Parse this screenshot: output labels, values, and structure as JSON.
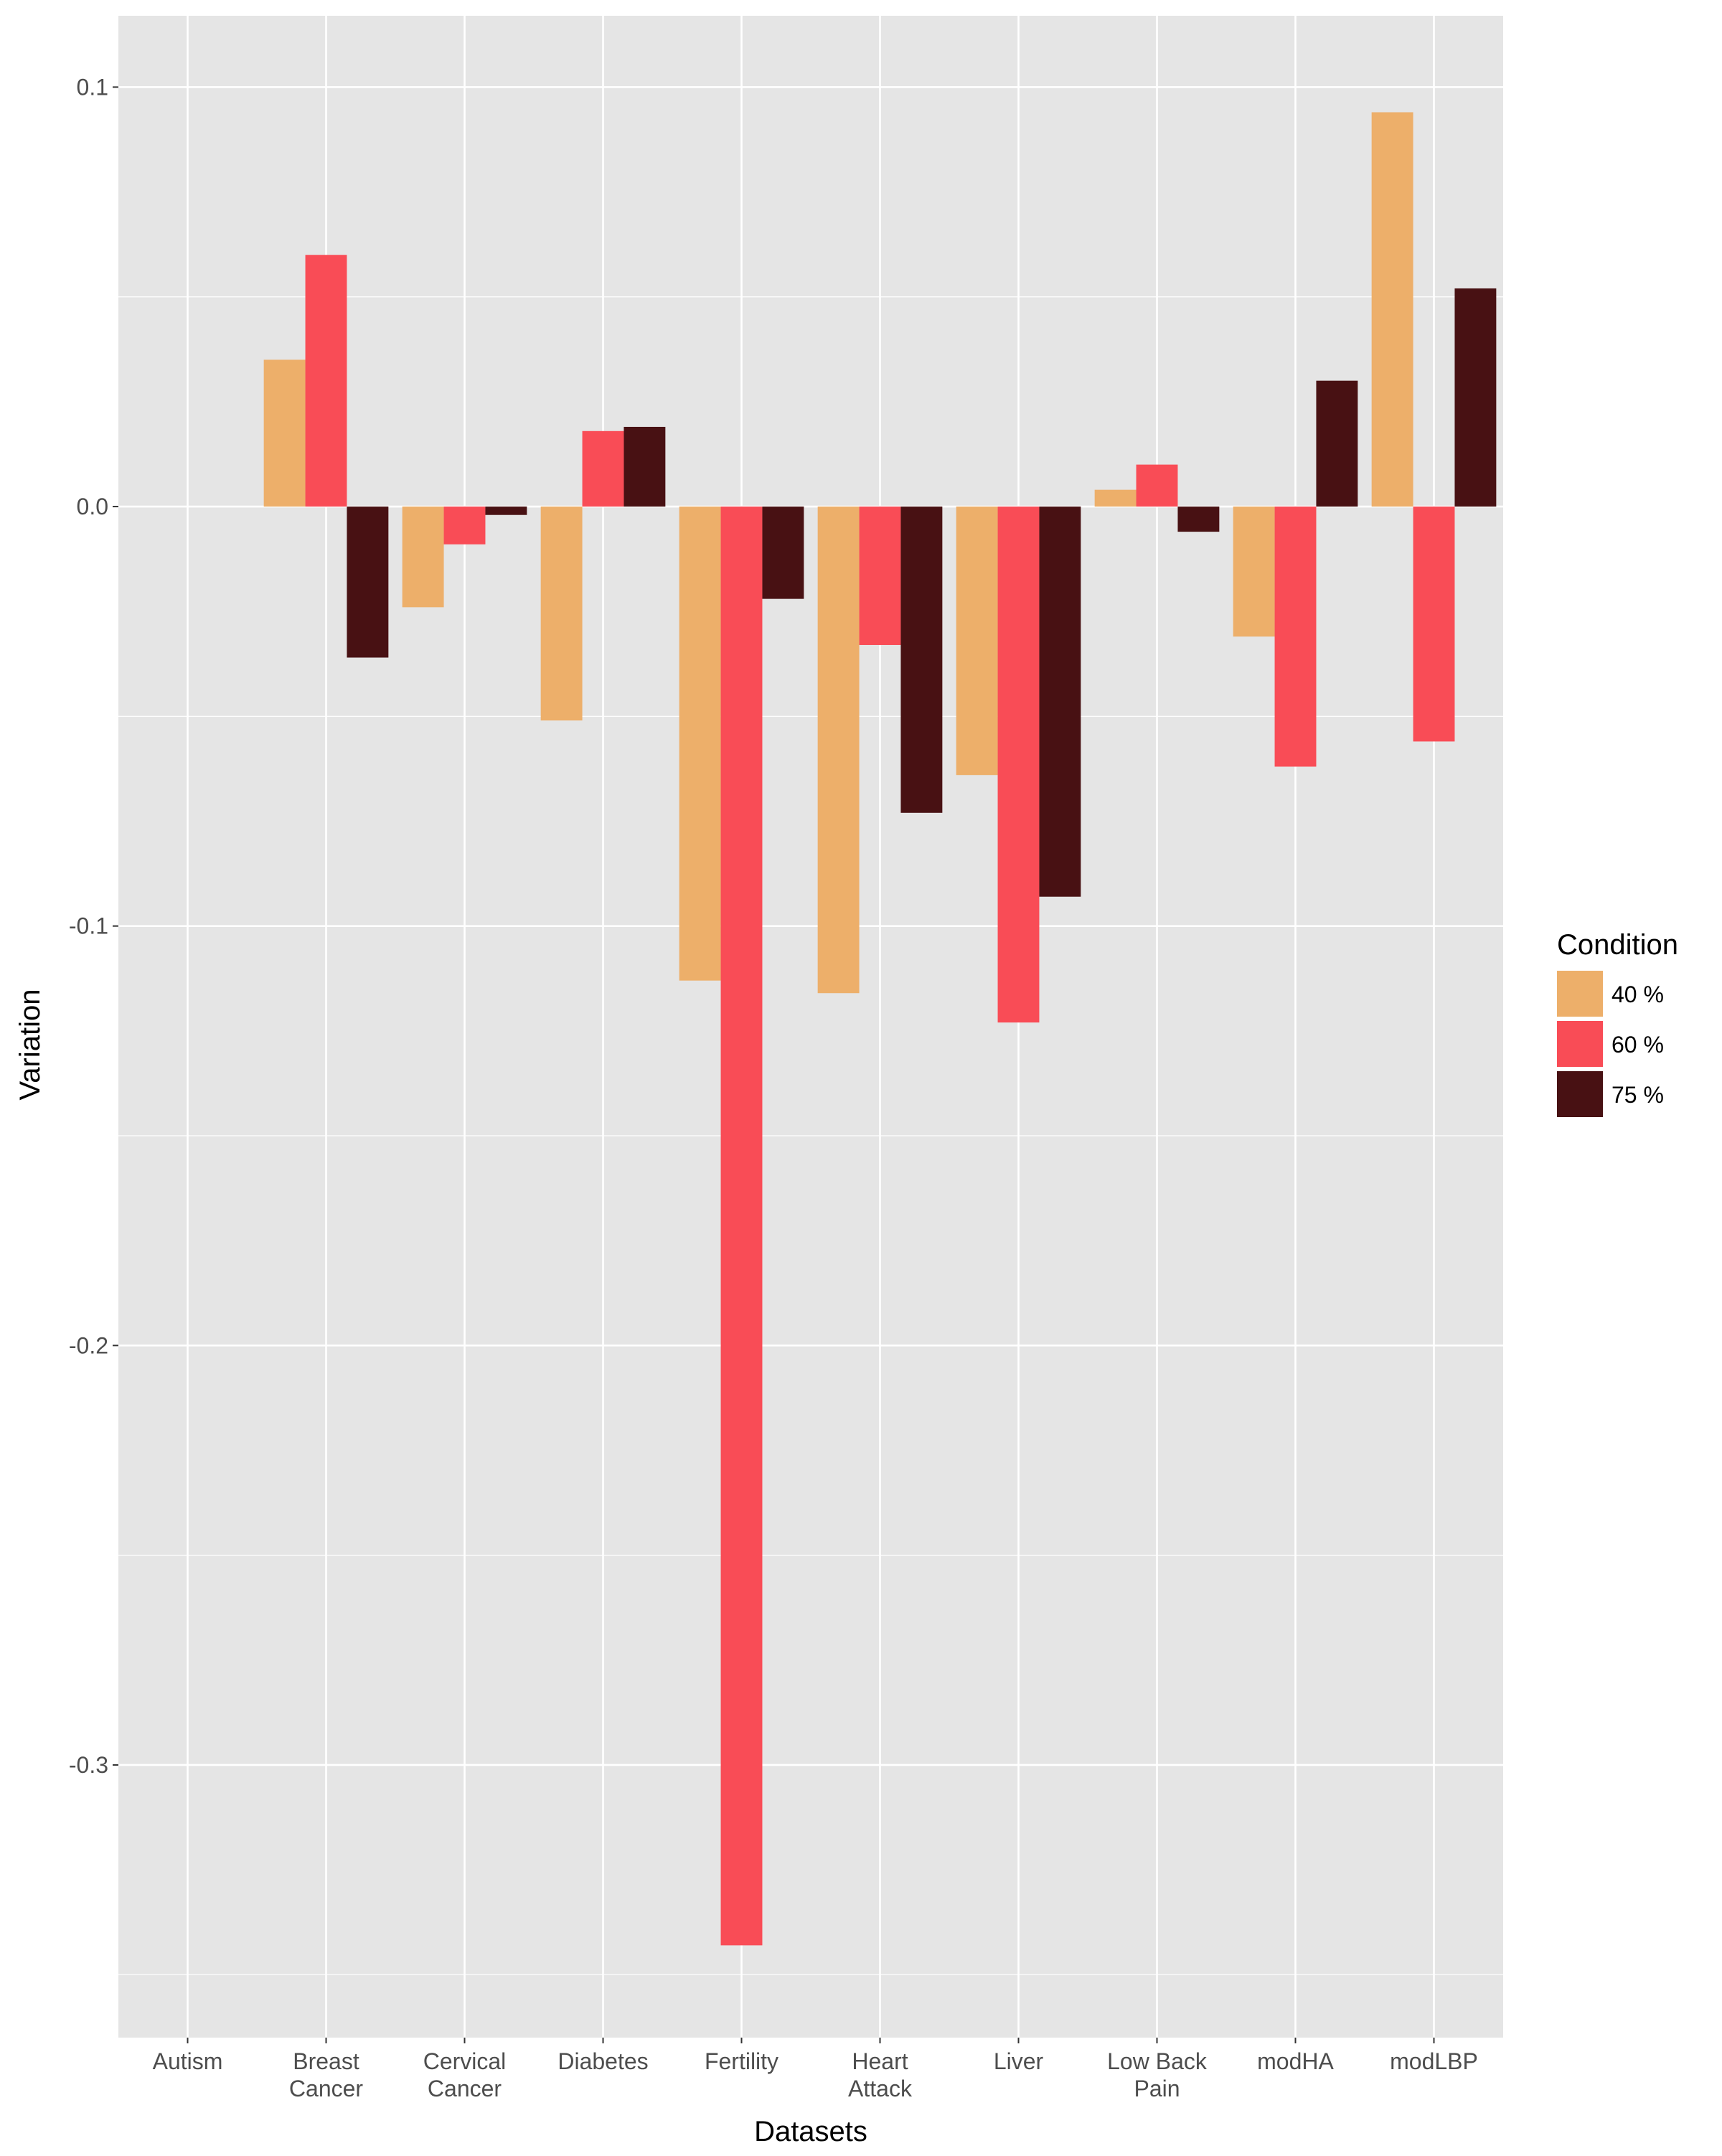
{
  "chart_data": {
    "type": "bar",
    "xlabel": "Datasets",
    "ylabel": "Variation",
    "ylim": [
      -0.365,
      0.117
    ],
    "yticks": [
      0.1,
      0.0,
      -0.1,
      -0.2,
      -0.3
    ],
    "ytick_labels": [
      "0.1",
      "0.0",
      "-0.1",
      "-0.2",
      "-0.3"
    ],
    "categories": [
      [
        "Autism"
      ],
      [
        "Breast",
        "Cancer"
      ],
      [
        "Cervical",
        "Cancer"
      ],
      [
        "Diabetes"
      ],
      [
        "Fertility"
      ],
      [
        "Heart",
        "Attack"
      ],
      [
        "Liver"
      ],
      [
        "Low Back",
        "Pain"
      ],
      [
        "modHA"
      ],
      [
        "modLBP"
      ]
    ],
    "series": [
      {
        "name": "40 %",
        "color": "#EDAF6A",
        "values": [
          0.0,
          0.035,
          -0.024,
          -0.051,
          -0.113,
          -0.116,
          -0.064,
          0.004,
          -0.031,
          0.094
        ]
      },
      {
        "name": "60 %",
        "color": "#F94C56",
        "values": [
          0.0,
          0.06,
          -0.009,
          0.018,
          -0.343,
          -0.033,
          -0.123,
          0.01,
          -0.062,
          -0.056
        ]
      },
      {
        "name": "75 %",
        "color": "#481113",
        "values": [
          0.0,
          -0.036,
          -0.002,
          0.019,
          -0.022,
          -0.073,
          -0.093,
          -0.006,
          0.03,
          0.052
        ]
      }
    ],
    "legend": {
      "title": "Condition",
      "position": "right"
    },
    "grid": true,
    "panel_background": "#E5E5E5",
    "grid_color": "#FFFFFF"
  }
}
